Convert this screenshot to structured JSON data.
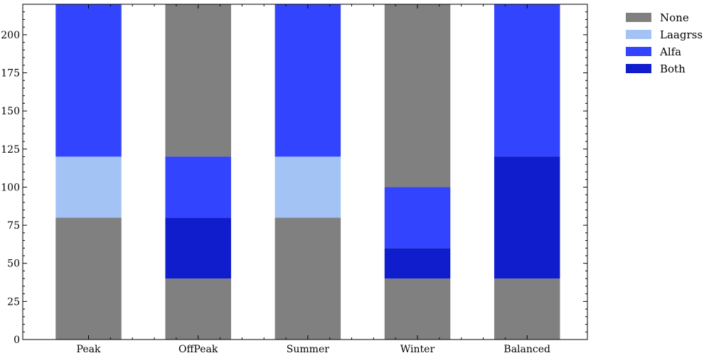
{
  "chart_data": {
    "type": "bar",
    "stacked": true,
    "categories": [
      "Peak",
      "OffPeak",
      "Summer",
      "Winter",
      "Balanced"
    ],
    "series": [
      {
        "name": "None",
        "color": "#808080",
        "segments": [
          [
            0,
            80
          ],
          [
            0,
            40
          ],
          [
            0,
            80
          ],
          [
            0,
            40
          ],
          [
            0,
            40
          ]
        ]
      },
      {
        "name": "Both",
        "color": "#0f1dcc",
        "segments": [
          null,
          [
            40,
            80
          ],
          null,
          [
            40,
            60
          ],
          [
            40,
            120
          ]
        ]
      },
      {
        "name": "Laagrss",
        "color": "#a3c3f5",
        "segments": [
          [
            80,
            120
          ],
          null,
          [
            80,
            120
          ],
          null,
          null
        ]
      },
      {
        "name": "Alfa",
        "color": "#3344ff",
        "segments": [
          [
            120,
            220
          ],
          [
            80,
            120
          ],
          [
            120,
            220
          ],
          [
            60,
            100
          ],
          [
            120,
            220
          ]
        ]
      },
      {
        "name": "None",
        "color": "#808080",
        "segments": [
          null,
          [
            120,
            220
          ],
          null,
          [
            100,
            220
          ],
          null
        ]
      }
    ],
    "legend": [
      {
        "name": "None",
        "color": "#808080"
      },
      {
        "name": "Laagrss",
        "color": "#a3c3f5"
      },
      {
        "name": "Alfa",
        "color": "#3344ff"
      },
      {
        "name": "Both",
        "color": "#0f1dcc"
      }
    ],
    "legend_position": "outside-top-right",
    "ylim": [
      0,
      220
    ],
    "yticks": [
      0,
      25,
      50,
      75,
      100,
      125,
      150,
      175,
      200
    ],
    "xlabel": "",
    "ylabel": "",
    "title": "",
    "grid": false
  }
}
